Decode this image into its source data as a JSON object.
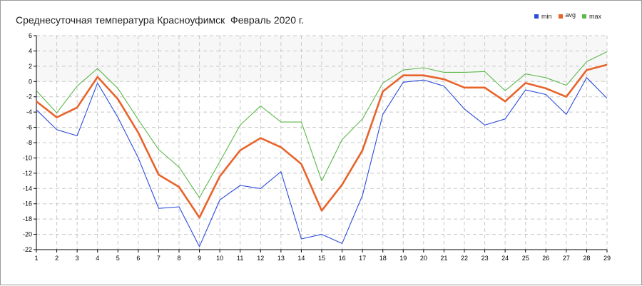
{
  "chart_data": {
    "type": "line",
    "title": "Среднесуточная температура Красноуфимск  Февраль 2020 г.",
    "xlabel": "",
    "ylabel": "",
    "x": [
      1,
      2,
      3,
      4,
      5,
      6,
      7,
      8,
      9,
      10,
      11,
      12,
      13,
      14,
      15,
      16,
      17,
      18,
      19,
      20,
      21,
      22,
      23,
      24,
      25,
      26,
      27,
      28,
      29
    ],
    "xlim": [
      1,
      29
    ],
    "ylim": [
      -22,
      6
    ],
    "y_ticks": [
      6,
      4,
      2,
      0,
      -2,
      -4,
      -6,
      -8,
      -10,
      -12,
      -14,
      -16,
      -18,
      -20,
      -22
    ],
    "grid": true,
    "legend_position": "top-right",
    "series": [
      {
        "name": "min",
        "color": "#2b4bdc",
        "values": [
          -3.7,
          -6.3,
          -7.1,
          -0.2,
          -4.7,
          -10.0,
          -16.6,
          -16.4,
          -21.6,
          -15.5,
          -13.6,
          -14.0,
          -11.8,
          -20.6,
          -20.0,
          -21.2,
          -14.9,
          -4.3,
          -0.1,
          0.2,
          -0.6,
          -3.6,
          -5.7,
          -4.9,
          -1.1,
          -1.7,
          -4.3,
          0.5,
          -2.2
        ]
      },
      {
        "name": "avg",
        "color": "#e8642b",
        "values": [
          -2.6,
          -4.7,
          -3.4,
          0.6,
          -2.3,
          -6.7,
          -12.2,
          -13.8,
          -17.8,
          -12.4,
          -9.0,
          -7.4,
          -8.6,
          -10.8,
          -16.9,
          -13.5,
          -9.0,
          -1.3,
          0.8,
          0.8,
          0.3,
          -0.8,
          -0.8,
          -2.6,
          -0.2,
          -0.9,
          -2.0,
          1.5,
          2.2
        ]
      },
      {
        "name": "max",
        "color": "#5cb84a",
        "values": [
          -1.2,
          -4.1,
          -0.6,
          1.7,
          -0.9,
          -5.0,
          -8.9,
          -11.2,
          -15.2,
          -10.5,
          -5.7,
          -3.2,
          -5.3,
          -5.3,
          -13.0,
          -7.6,
          -4.9,
          -0.2,
          1.5,
          1.8,
          1.2,
          1.2,
          1.3,
          -1.2,
          1.0,
          0.5,
          -0.5,
          2.6,
          3.9
        ]
      }
    ]
  }
}
